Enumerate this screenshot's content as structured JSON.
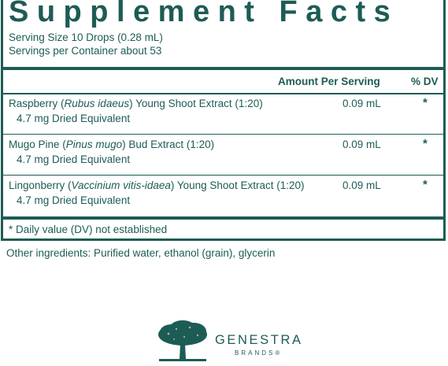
{
  "label": {
    "title": "Supplement Facts",
    "serving_size": "Serving Size 10 Drops (0.28 mL)",
    "servings_per_container": "Servings per Container about 53",
    "header_amount": "Amount Per Serving",
    "header_dv": "% DV",
    "ingredients": [
      {
        "name_prefix": "Raspberry (",
        "latin": "Rubus idaeus",
        "name_suffix": ") Young Shoot Extract (1:20)",
        "equivalent": "4.7 mg Dried Equivalent",
        "amount": "0.09 mL",
        "dv": "*"
      },
      {
        "name_prefix": "Mugo Pine (",
        "latin": "Pinus mugo",
        "name_suffix": ") Bud Extract (1:20)",
        "equivalent": "4.7 mg Dried Equivalent",
        "amount": "0.09 mL",
        "dv": "*"
      },
      {
        "name_prefix": "Lingonberry (",
        "latin": "Vaccinium vitis-idaea",
        "name_suffix": ") Young Shoot Extract (1:20)",
        "equivalent": "4.7 mg Dried Equivalent",
        "amount": "0.09 mL",
        "dv": "*"
      }
    ],
    "footnote": "* Daily value (DV) not established"
  },
  "other_ingredients": "Other ingredients: Purified water, ethanol (grain), glycerin",
  "brand": {
    "name": "GENESTRA",
    "sub": "BRANDS®",
    "icon": "tree-icon"
  },
  "colors": {
    "ink": "#1d5c55",
    "background": "#ffffff"
  }
}
